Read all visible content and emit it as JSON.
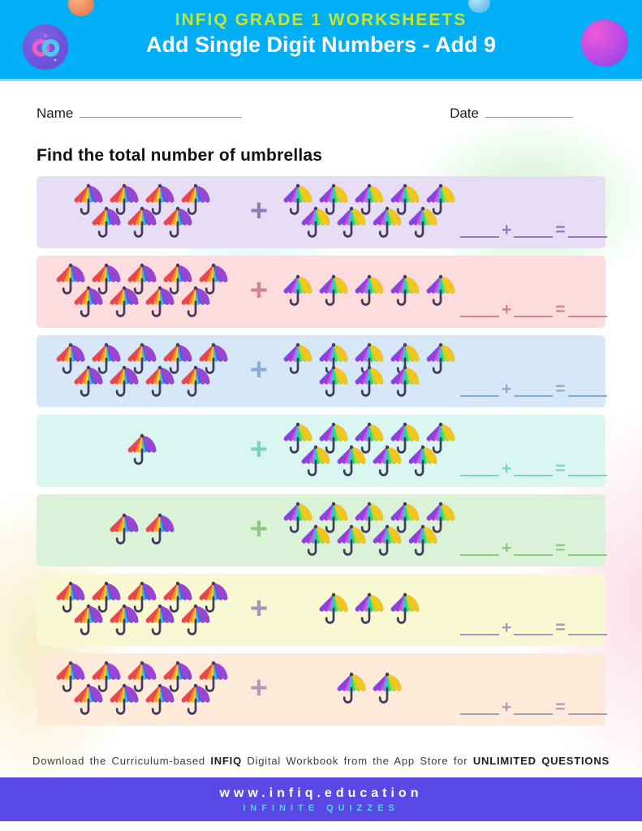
{
  "theme": {
    "page_bg": "#ffffff",
    "header_bg": "#00aff5",
    "header_line": "#8fd6f8",
    "brand_text": "#c6e62c",
    "title_text": "#ffffff",
    "logo_badge": "#6b50d8",
    "footer_bar": "#5a48e4",
    "tagline": "#4fd2f2",
    "note_text": "#3d3d3d"
  },
  "header": {
    "brand": "INFIQ GRADE 1 WORKSHEETS",
    "title": "Add Single Digit Numbers - Add 9",
    "logo": {
      "left_ring_color": "#ef5dc8",
      "right_ring_color": "#4fc8f0"
    }
  },
  "fields": {
    "name_label": "Name",
    "date_label": "Date"
  },
  "instruction": "Find the total number of umbrellas",
  "answer_template": {
    "plus": "+",
    "equals": "="
  },
  "umbrella": {
    "warm": [
      "#e8474b",
      "#f59422",
      "#f7ce2e",
      "#3fb7ec",
      "#4f63d8",
      "#9a44d4"
    ],
    "cool": [
      "#8b42e0",
      "#e44ecb",
      "#34bff0",
      "#2ed67a",
      "#8fe13e",
      "#f5c51f"
    ],
    "handle": "#43395c"
  },
  "problems": [
    {
      "bg": "#e7def6",
      "accent": "#8d7cc0",
      "left_count": 7,
      "left_rows": [
        4,
        3
      ],
      "left_style": "warm",
      "right_count": 9,
      "right_rows": [
        5,
        4
      ],
      "right_style": "cool"
    },
    {
      "bg": "#fcdcdc",
      "accent": "#d4848e",
      "left_count": 9,
      "left_rows": [
        5,
        4
      ],
      "left_style": "warm",
      "right_count": 5,
      "right_rows": [
        5
      ],
      "right_style": "cool"
    },
    {
      "bg": "#d6e8f8",
      "accent": "#84aed4",
      "left_count": 9,
      "left_rows": [
        5,
        4
      ],
      "left_style": "warm",
      "right_count": 8,
      "right_rows": [
        5,
        3
      ],
      "right_style": "cool"
    },
    {
      "bg": "#d9f6f0",
      "accent": "#7fd2bd",
      "left_count": 1,
      "left_rows": [
        1
      ],
      "left_style": "warm",
      "right_count": 9,
      "right_rows": [
        5,
        4
      ],
      "right_style": "cool"
    },
    {
      "bg": "#daf3d8",
      "accent": "#8cc983",
      "left_count": 2,
      "left_rows": [
        2
      ],
      "left_style": "warm",
      "right_count": 9,
      "right_rows": [
        5,
        4
      ],
      "right_style": "cool"
    },
    {
      "bg": "#f8f8d2",
      "accent": "#9d99bb",
      "left_count": 9,
      "left_rows": [
        5,
        4
      ],
      "left_style": "warm",
      "right_count": 3,
      "right_rows": [
        3
      ],
      "right_style": "cool"
    },
    {
      "bg": "#fdead9",
      "accent": "#a9a0b6",
      "left_count": 9,
      "left_rows": [
        5,
        4
      ],
      "left_style": "warm",
      "right_count": 2,
      "right_rows": [
        2
      ],
      "right_style": "cool"
    }
  ],
  "footer": {
    "note_part1": "Download the Curriculum-based ",
    "note_bold1": "INFIQ",
    "note_part2": " Digital Workbook from the App Store for ",
    "note_bold2": "UNLIMITED QUESTIONS",
    "website": "www.infiq.education",
    "tagline": "INFINITE QUIZZES"
  }
}
